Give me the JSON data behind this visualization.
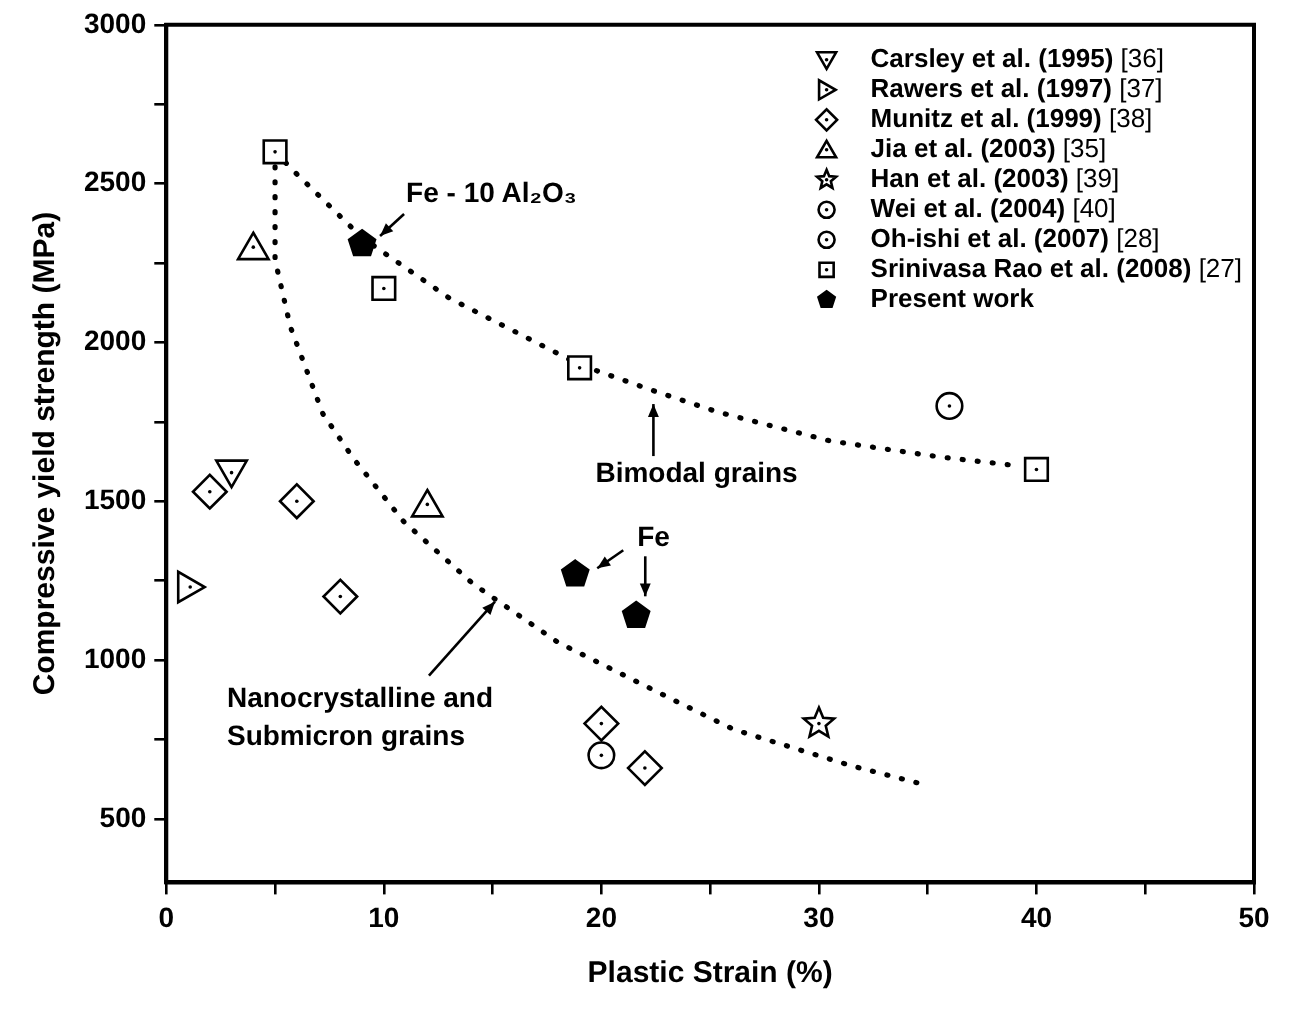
{
  "chart_data": {
    "type": "scatter",
    "xlabel": "Plastic Strain (%)",
    "ylabel": "Compressive yield strength (MPa)",
    "xlim": [
      0,
      50
    ],
    "ylim": [
      300,
      3000
    ],
    "xticks": [
      0,
      {
        "value": 5,
        "label": null
      },
      10,
      {
        "value": 15,
        "label": null
      },
      20,
      {
        "value": 25,
        "label": null
      },
      30,
      {
        "value": 35,
        "label": null
      },
      40,
      {
        "value": 45,
        "label": null
      },
      50
    ],
    "yticks": [
      500,
      {
        "value": 750,
        "label": null
      },
      1000,
      {
        "value": 1250,
        "label": null
      },
      1500,
      {
        "value": 1750,
        "label": null
      },
      2000,
      {
        "value": 2250,
        "label": null
      },
      2500,
      {
        "value": 2750,
        "label": null
      },
      3000
    ],
    "grid": false,
    "legend": "top right",
    "series": [
      {
        "name": "Carsley et al. (1995) [36]",
        "color": "#000000",
        "marker": "triangle-down",
        "x": [
          3
        ],
        "values": [
          1590
        ]
      },
      {
        "name": "Rawers et al. (1997) [37]",
        "color": "#000000",
        "marker": "triangle-right",
        "x": [
          1.1
        ],
        "values": [
          1230
        ]
      },
      {
        "name": "Munitz et al. (1999) [38]",
        "color": "#000000",
        "marker": "diamond",
        "x": [
          2,
          6,
          8,
          20,
          22
        ],
        "values": [
          1530,
          1500,
          1200,
          800,
          660
        ]
      },
      {
        "name": "Jia et al. (2003) [35]",
        "color": "#000000",
        "marker": "triangle",
        "x": [
          4,
          12
        ],
        "values": [
          2300,
          1490
        ]
      },
      {
        "name": "Han et al. (2003) [39]",
        "color": "#000000",
        "marker": "star",
        "x": [
          30
        ],
        "values": [
          800
        ]
      },
      {
        "name": "Wei et al. (2004) [40]",
        "color": "#000000",
        "marker": "circle",
        "x": [
          20
        ],
        "values": [
          700
        ]
      },
      {
        "name": "Oh-ishi et al. (2007) [28]",
        "color": "#000000",
        "marker": "circle",
        "x": [
          36
        ],
        "values": [
          1800
        ]
      },
      {
        "name": "Srinivasa Rao et al. (2008) [27]",
        "color": "#000000",
        "marker": "square",
        "x": [
          5,
          10,
          19,
          40
        ],
        "values": [
          2600,
          2170,
          1920,
          1600
        ]
      },
      {
        "name": "Present work",
        "color": "#000000",
        "x": [
          9,
          18.8,
          21.6
        ],
        "values": [
          2310,
          1270,
          1140
        ]
      },
      {
        "type": "line",
        "color": "#000000",
        "marker": "none",
        "line_style": "dotted",
        "x": [
          5,
          6,
          9,
          13,
          19,
          22.3,
          25.4,
          30.5,
          35.5,
          38.7
        ],
        "values": [
          2600,
          2530,
          2330,
          2140,
          1930,
          1850,
          1780,
          1690,
          1640,
          1615
        ]
      },
      {
        "type": "line",
        "color": "#000000",
        "marker": "none",
        "line_style": "dotted",
        "x": [
          5,
          5,
          5.7,
          7.2,
          8.6,
          10.9,
          14.1,
          18,
          23.3,
          26.1,
          31.5,
          34.5
        ],
        "values": [
          2600,
          2260,
          2050,
          1775,
          1635,
          1437,
          1240,
          1056,
          875,
          781,
          667,
          614
        ]
      }
    ],
    "annotations": [
      {
        "text": "Fe - 10 Al₂O₃",
        "x": 9,
        "y": 2310
      },
      {
        "text": "Bimodal grains",
        "x": 22.3,
        "y": 1850
      },
      {
        "text": "Fe",
        "x": 18.8,
        "y": 1270
      },
      {
        "text": "Nanocrystalline and Submicron grains",
        "x": 15.2,
        "y": 1190
      }
    ]
  }
}
